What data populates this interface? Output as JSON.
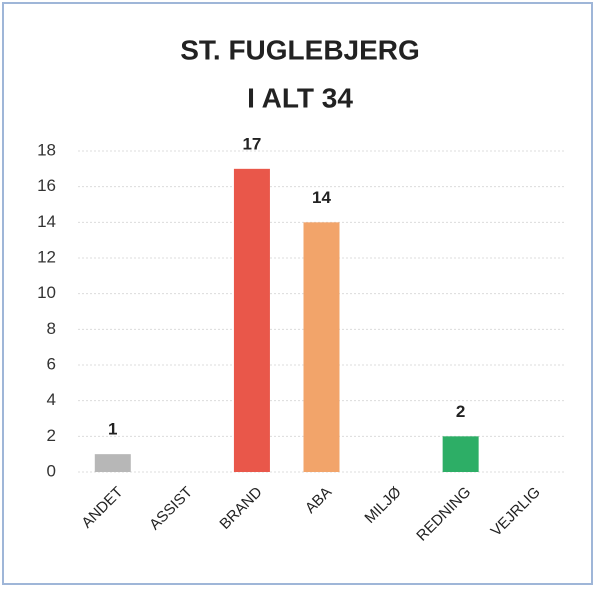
{
  "chart_data": {
    "type": "bar",
    "title": "ST. FUGLEBJERG",
    "subtitle": "I ALT 34",
    "categories": [
      "ANDET",
      "ASSIST",
      "BRAND",
      "ABA",
      "MILJØ",
      "REDNING",
      "VEJRLIG"
    ],
    "values": [
      1,
      0,
      17,
      14,
      0,
      2,
      0
    ],
    "colors": [
      "#b7b7b7",
      "#b7b7b7",
      "#e9574a",
      "#f2a46a",
      "#b7b7b7",
      "#2dae66",
      "#b7b7b7"
    ],
    "ylim": [
      0,
      18
    ],
    "yticks": [
      0,
      2,
      4,
      6,
      8,
      10,
      12,
      14,
      16,
      18
    ],
    "grid": true
  }
}
